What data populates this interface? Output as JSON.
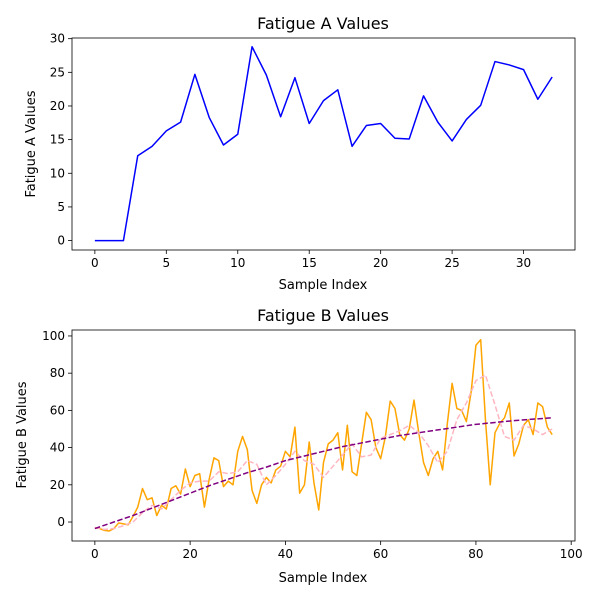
{
  "chart_data": [
    {
      "type": "line",
      "title": "Fatigue A Values",
      "xlabel": "Sample Index",
      "ylabel": "Fatigue A Values",
      "xlim": [
        -1.6,
        33.6
      ],
      "ylim": [
        -1.4,
        30.1
      ],
      "xticks": [
        0,
        5,
        10,
        15,
        20,
        25,
        30
      ],
      "yticks": [
        0,
        5,
        10,
        15,
        20,
        25,
        30
      ],
      "grid": false,
      "series": [
        {
          "color": "#0000ff",
          "style": "solid",
          "x": [
            0,
            1,
            2,
            3,
            4,
            5,
            6,
            7,
            8,
            9,
            10,
            11,
            12,
            13,
            14,
            15,
            16,
            17,
            18,
            19,
            20,
            21,
            22,
            23,
            24,
            25,
            26,
            27,
            28,
            29,
            30,
            31,
            32
          ],
          "values": [
            0,
            0,
            0,
            12.6,
            14,
            16.3,
            17.6,
            24.7,
            18.3,
            14.2,
            15.8,
            28.8,
            24.6,
            18.4,
            24.2,
            17.4,
            20.8,
            22.4,
            14,
            17.1,
            17.4,
            15.2,
            15.1,
            21.5,
            17.6,
            14.8,
            18,
            20.1,
            26.6,
            26.1,
            25.4,
            21,
            24.3
          ]
        }
      ]
    },
    {
      "type": "line",
      "title": "Fatigue B Values",
      "xlabel": "Sample Index",
      "ylabel": "Fatigue B Values",
      "xlim": [
        -4.8,
        100.8
      ],
      "ylim": [
        -10.2,
        103.2
      ],
      "xticks": [
        0,
        20,
        40,
        60,
        80,
        100
      ],
      "yticks": [
        0,
        20,
        40,
        60,
        80,
        100
      ],
      "grid": false,
      "series": [
        {
          "color": "#ffa500",
          "style": "solid",
          "x": [
            0,
            1,
            2,
            3,
            4,
            5,
            6,
            7,
            8,
            9,
            10,
            11,
            12,
            13,
            14,
            15,
            16,
            17,
            18,
            19,
            20,
            21,
            22,
            23,
            24,
            25,
            26,
            27,
            28,
            29,
            30,
            31,
            32,
            33,
            34,
            35,
            36,
            37,
            38,
            39,
            40,
            41,
            42,
            43,
            44,
            45,
            46,
            47,
            48,
            49,
            50,
            51,
            52,
            53,
            54,
            55,
            56,
            57,
            58,
            59,
            60,
            61,
            62,
            63,
            64,
            65,
            66,
            67,
            68,
            69,
            70,
            71,
            72,
            73,
            74,
            75,
            76,
            77,
            78,
            79,
            80,
            81,
            82,
            83,
            84,
            85,
            86,
            87,
            88,
            89,
            90,
            91,
            92,
            93,
            94,
            95,
            96
          ],
          "values": [
            -3,
            -3.5,
            -4.5,
            -4.8,
            -3.5,
            -0.5,
            -1,
            -1.5,
            3,
            8,
            18,
            12,
            13,
            3.5,
            9,
            7,
            18,
            19.5,
            15,
            28.5,
            19,
            25,
            26,
            8,
            23,
            34.5,
            33,
            19,
            22,
            20,
            38,
            46,
            39,
            17,
            10,
            20,
            24,
            21,
            28,
            30,
            38,
            35,
            51,
            15.5,
            20,
            43,
            21,
            6.5,
            32,
            42,
            44,
            48,
            28,
            52,
            27,
            25,
            42,
            59,
            55,
            40,
            34,
            46,
            65,
            61,
            47,
            44,
            50,
            65.5,
            48,
            32,
            25,
            34,
            38,
            28,
            53,
            74.5,
            61,
            60,
            54,
            70,
            95,
            98,
            55,
            20,
            48,
            53,
            56,
            64,
            35.5,
            42,
            52,
            55,
            47,
            64,
            62,
            51,
            47
          ]
        },
        {
          "color": "#ffb6c1",
          "style": "dashed",
          "x": [
            0,
            2,
            4,
            6,
            8,
            10,
            12,
            14,
            16,
            18,
            20,
            22,
            24,
            26,
            28,
            30,
            32,
            34,
            36,
            38,
            40,
            42,
            44,
            46,
            48,
            50,
            52,
            54,
            56,
            58,
            60,
            62,
            64,
            66,
            68,
            70,
            72,
            74,
            76,
            78,
            80,
            82,
            84,
            86,
            88,
            90,
            92,
            94,
            96
          ],
          "values": [
            -3,
            -4,
            -3.5,
            -2,
            0,
            5,
            9,
            7,
            12,
            17,
            21,
            22,
            22,
            27,
            26,
            27,
            33,
            31,
            20,
            25,
            31,
            38,
            33,
            31,
            24,
            30,
            36,
            42,
            35,
            36,
            45,
            47,
            49,
            52,
            48,
            41,
            32,
            38,
            55,
            64,
            76,
            79,
            63,
            46,
            44,
            52,
            50,
            47,
            50
          ]
        },
        {
          "color": "#800080",
          "style": "dashed",
          "x": [
            0,
            4,
            8,
            12,
            16,
            20,
            24,
            28,
            32,
            36,
            40,
            44,
            48,
            52,
            56,
            60,
            64,
            68,
            72,
            76,
            80,
            84,
            88,
            92,
            96
          ],
          "values": [
            -3.5,
            0,
            3.5,
            7.5,
            11.5,
            15.5,
            19.5,
            23,
            26.5,
            29.5,
            33,
            35.5,
            38,
            40.5,
            42.5,
            44.5,
            46.5,
            48,
            49.5,
            51,
            52.5,
            53.5,
            54.5,
            55.3,
            56
          ]
        }
      ]
    }
  ]
}
